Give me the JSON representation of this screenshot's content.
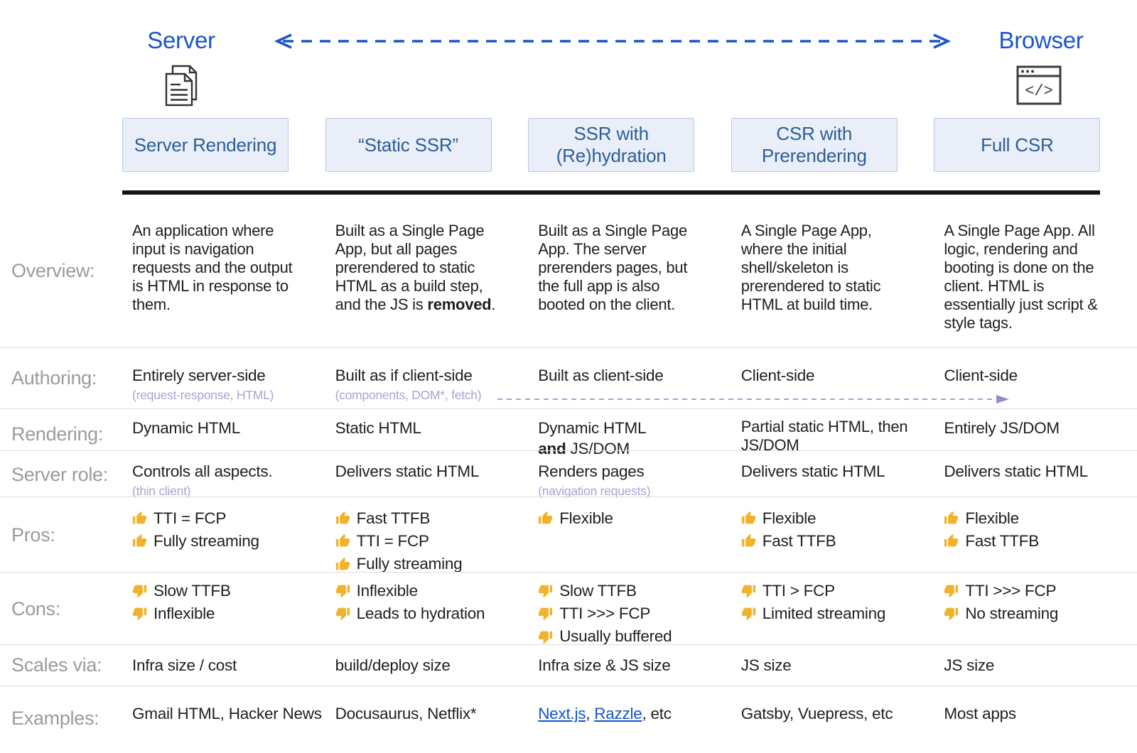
{
  "top": {
    "server_label": "Server",
    "browser_label": "Browser",
    "server_icon": "document-pages-icon",
    "browser_icon": "browser-window-icon"
  },
  "columns": [
    "Server Rendering",
    "“Static SSR”",
    "SSR with (Re)hydration",
    "CSR with Prerendering",
    "Full CSR"
  ],
  "colors": {
    "accent_blue": "#1b55c9",
    "box_text_blue": "#2d5e96",
    "box_fill": "#e9eef8",
    "box_border": "#b9c9e6",
    "row_label_gray": "#9b9b9b",
    "body_text": "#1f1f1f",
    "subnote_lavender": "#a6a6d2",
    "divider_gray": "#dcdcdc",
    "black_bar": "#141414",
    "link_blue": "#1155cc",
    "thumb_gold": "#f2b32c"
  },
  "rows": [
    {
      "key": "overview",
      "label": "Overview:",
      "cells": [
        [
          {
            "type": "para",
            "seg": [
              {
                "t": "An application where input is navigation requests and the output is HTML in response to them."
              }
            ]
          }
        ],
        [
          {
            "type": "para",
            "seg": [
              {
                "t": "Built as a Single Page App, but all pages prerendered to static HTML as a build step, and the JS is "
              },
              {
                "t": "removed",
                "b": true
              },
              {
                "t": "."
              }
            ]
          }
        ],
        [
          {
            "type": "para",
            "seg": [
              {
                "t": "Built as a Single Page App. The server prerenders pages, but the full app is also booted on the client."
              }
            ]
          }
        ],
        [
          {
            "type": "para",
            "seg": [
              {
                "t": "A Single Page App, where the initial shell/skeleton is prerendered to static HTML at build time."
              }
            ]
          }
        ],
        [
          {
            "type": "para",
            "seg": [
              {
                "t": "A Single Page App. All logic, rendering and booting is done on the client. HTML is essentially just script & style tags."
              }
            ]
          }
        ]
      ]
    },
    {
      "key": "authoring",
      "label": "Authoring:",
      "arrow": true,
      "cells": [
        [
          {
            "type": "line",
            "seg": [
              {
                "t": "Entirely server-side"
              }
            ]
          },
          {
            "type": "sub",
            "seg": [
              {
                "t": "(request-response, HTML)"
              }
            ]
          }
        ],
        [
          {
            "type": "line",
            "seg": [
              {
                "t": "Built as if client-side"
              }
            ]
          },
          {
            "type": "sub",
            "seg": [
              {
                "t": "(components, DOM*, fetch)"
              }
            ]
          }
        ],
        [
          {
            "type": "line",
            "seg": [
              {
                "t": "Built as client-side"
              }
            ]
          }
        ],
        [
          {
            "type": "line",
            "seg": [
              {
                "t": "Client-side"
              }
            ]
          }
        ],
        [
          {
            "type": "line",
            "seg": [
              {
                "t": "Client-side"
              }
            ]
          }
        ]
      ]
    },
    {
      "key": "rendering",
      "label": "Rendering:",
      "cells": [
        [
          {
            "type": "line",
            "seg": [
              {
                "t": "Dynamic HTML"
              }
            ]
          }
        ],
        [
          {
            "type": "line",
            "seg": [
              {
                "t": "Static HTML"
              }
            ]
          }
        ],
        [
          {
            "type": "line",
            "seg": [
              {
                "t": "Dynamic HTML"
              }
            ]
          },
          {
            "type": "line",
            "seg": [
              {
                "t": "and",
                "b": true
              },
              {
                "t": " JS/DOM"
              }
            ]
          }
        ],
        [
          {
            "type": "para",
            "seg": [
              {
                "t": "Partial static HTML, then JS/DOM"
              }
            ]
          }
        ],
        [
          {
            "type": "line",
            "seg": [
              {
                "t": "Entirely JS/DOM"
              }
            ]
          }
        ]
      ]
    },
    {
      "key": "server-role",
      "label": "Server role:",
      "cells": [
        [
          {
            "type": "line",
            "seg": [
              {
                "t": "Controls all aspects."
              }
            ]
          },
          {
            "type": "sub",
            "seg": [
              {
                "t": "(thin client)"
              }
            ]
          }
        ],
        [
          {
            "type": "line",
            "seg": [
              {
                "t": "Delivers static HTML"
              }
            ]
          }
        ],
        [
          {
            "type": "line",
            "seg": [
              {
                "t": "Renders pages"
              }
            ]
          },
          {
            "type": "sub",
            "seg": [
              {
                "t": "(navigation requests)"
              }
            ]
          }
        ],
        [
          {
            "type": "line",
            "seg": [
              {
                "t": "Delivers static HTML"
              }
            ]
          }
        ],
        [
          {
            "type": "line",
            "seg": [
              {
                "t": "Delivers static HTML"
              }
            ]
          }
        ]
      ]
    },
    {
      "key": "pros",
      "label": "Pros:",
      "cells": [
        [
          {
            "type": "up",
            "seg": [
              {
                "t": "TTI = FCP"
              }
            ]
          },
          {
            "type": "up",
            "seg": [
              {
                "t": "Fully streaming"
              }
            ]
          }
        ],
        [
          {
            "type": "up",
            "seg": [
              {
                "t": "Fast TTFB"
              }
            ]
          },
          {
            "type": "up",
            "seg": [
              {
                "t": "TTI = FCP"
              }
            ]
          },
          {
            "type": "up",
            "seg": [
              {
                "t": "Fully streaming"
              }
            ]
          }
        ],
        [
          {
            "type": "up",
            "seg": [
              {
                "t": "Flexible"
              }
            ]
          }
        ],
        [
          {
            "type": "up",
            "seg": [
              {
                "t": "Flexible"
              }
            ]
          },
          {
            "type": "up",
            "seg": [
              {
                "t": "Fast TTFB"
              }
            ]
          }
        ],
        [
          {
            "type": "up",
            "seg": [
              {
                "t": "Flexible"
              }
            ]
          },
          {
            "type": "up",
            "seg": [
              {
                "t": "Fast TTFB"
              }
            ]
          }
        ]
      ]
    },
    {
      "key": "cons",
      "label": "Cons:",
      "cells": [
        [
          {
            "type": "down",
            "seg": [
              {
                "t": "Slow TTFB"
              }
            ]
          },
          {
            "type": "down",
            "seg": [
              {
                "t": "Inflexible"
              }
            ]
          }
        ],
        [
          {
            "type": "down",
            "seg": [
              {
                "t": "Inflexible"
              }
            ]
          },
          {
            "type": "down",
            "seg": [
              {
                "t": "Leads to hydration"
              }
            ]
          }
        ],
        [
          {
            "type": "down",
            "seg": [
              {
                "t": "Slow TTFB"
              }
            ]
          },
          {
            "type": "down",
            "seg": [
              {
                "t": "TTI >>> FCP"
              }
            ]
          },
          {
            "type": "down",
            "seg": [
              {
                "t": "Usually buffered"
              }
            ]
          }
        ],
        [
          {
            "type": "down",
            "seg": [
              {
                "t": "TTI > FCP"
              }
            ]
          },
          {
            "type": "down",
            "seg": [
              {
                "t": "Limited streaming"
              }
            ]
          }
        ],
        [
          {
            "type": "down",
            "seg": [
              {
                "t": "TTI >>> FCP"
              }
            ]
          },
          {
            "type": "down",
            "seg": [
              {
                "t": "No streaming"
              }
            ]
          }
        ]
      ]
    },
    {
      "key": "scales",
      "label": "Scales via:",
      "cells": [
        [
          {
            "type": "line",
            "seg": [
              {
                "t": "Infra size / cost"
              }
            ]
          }
        ],
        [
          {
            "type": "line",
            "seg": [
              {
                "t": "build/deploy size"
              }
            ]
          }
        ],
        [
          {
            "type": "line",
            "seg": [
              {
                "t": "Infra size & JS size"
              }
            ]
          }
        ],
        [
          {
            "type": "line",
            "seg": [
              {
                "t": "JS size"
              }
            ]
          }
        ],
        [
          {
            "type": "line",
            "seg": [
              {
                "t": "JS size"
              }
            ]
          }
        ]
      ]
    },
    {
      "key": "examples",
      "label": "Examples:",
      "cells": [
        [
          {
            "type": "line",
            "seg": [
              {
                "t": "Gmail HTML, Hacker News"
              }
            ]
          }
        ],
        [
          {
            "type": "line",
            "seg": [
              {
                "t": "Docusaurus, Netflix*"
              }
            ]
          }
        ],
        [
          {
            "type": "line",
            "seg": [
              {
                "t": "Next.js",
                "link": true
              },
              {
                "t": ", "
              },
              {
                "t": "Razzle",
                "link": true
              },
              {
                "t": ", etc"
              }
            ]
          }
        ],
        [
          {
            "type": "line",
            "seg": [
              {
                "t": "Gatsby, Vuepress, etc"
              }
            ]
          }
        ],
        [
          {
            "type": "line",
            "seg": [
              {
                "t": "Most apps"
              }
            ]
          }
        ]
      ]
    }
  ]
}
